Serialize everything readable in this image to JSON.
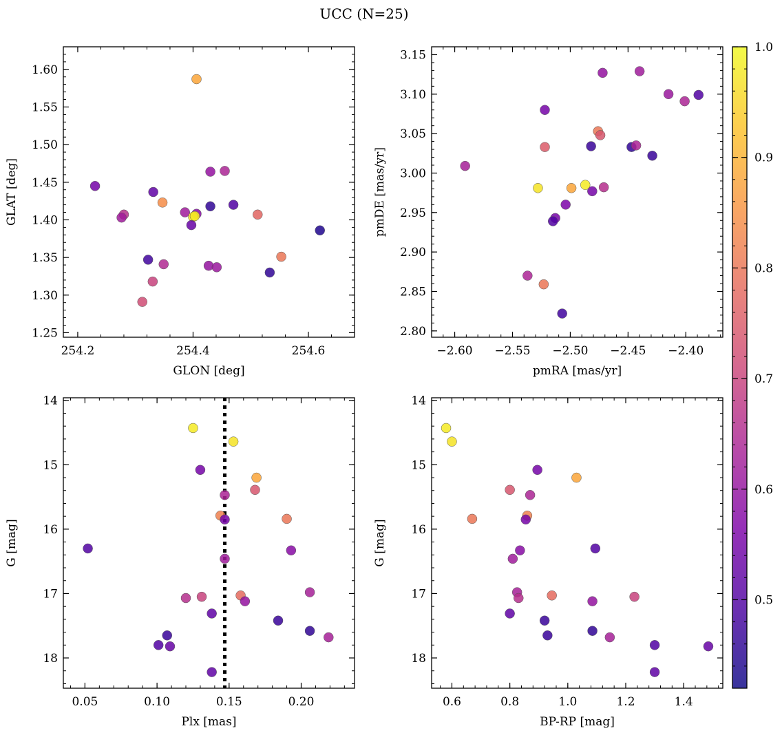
{
  "figure": {
    "title": "UCC (N=25)",
    "colormap": "plasma",
    "colorbar": {
      "range": [
        0.42,
        1.0
      ],
      "ticks": [
        0.5,
        0.6,
        0.7,
        0.8,
        0.9,
        1.0
      ],
      "tick_labels": [
        "0.5",
        "0.6",
        "0.7",
        "0.8",
        "0.9",
        "1.0"
      ]
    }
  },
  "chart_data": [
    {
      "type": "scatter",
      "id": "glon-glat",
      "xlabel": "GLON [deg]",
      "ylabel": "GLAT [deg]",
      "xlim": [
        254.175,
        254.68
      ],
      "ylim": [
        1.244,
        1.63
      ],
      "xticks": [
        254.2,
        254.4,
        254.6
      ],
      "xtick_labels": [
        "254.2",
        "254.4",
        "254.6"
      ],
      "yticks": [
        1.25,
        1.3,
        1.35,
        1.4,
        1.45,
        1.5,
        1.55,
        1.6
      ],
      "ytick_labels": [
        "1.25",
        "1.30",
        "1.35",
        "1.40",
        "1.45",
        "1.50",
        "1.55",
        "1.60"
      ],
      "grid": false,
      "points": [
        {
          "x": 254.406,
          "y": 1.587,
          "c": 0.88
        },
        {
          "x": 254.43,
          "y": 1.464,
          "c": 0.6
        },
        {
          "x": 254.455,
          "y": 1.465,
          "c": 0.64
        },
        {
          "x": 254.23,
          "y": 1.445,
          "c": 0.55
        },
        {
          "x": 254.331,
          "y": 1.437,
          "c": 0.52
        },
        {
          "x": 254.347,
          "y": 1.423,
          "c": 0.84
        },
        {
          "x": 254.47,
          "y": 1.42,
          "c": 0.5
        },
        {
          "x": 254.43,
          "y": 1.418,
          "c": 0.46
        },
        {
          "x": 254.386,
          "y": 1.41,
          "c": 0.62
        },
        {
          "x": 254.406,
          "y": 1.408,
          "c": 0.58
        },
        {
          "x": 254.4,
          "y": 1.404,
          "c": 0.97
        },
        {
          "x": 254.403,
          "y": 1.405,
          "c": 0.98
        },
        {
          "x": 254.28,
          "y": 1.407,
          "c": 0.66
        },
        {
          "x": 254.276,
          "y": 1.403,
          "c": 0.62
        },
        {
          "x": 254.512,
          "y": 1.407,
          "c": 0.77
        },
        {
          "x": 254.397,
          "y": 1.393,
          "c": 0.53
        },
        {
          "x": 254.62,
          "y": 1.386,
          "c": 0.44
        },
        {
          "x": 254.553,
          "y": 1.351,
          "c": 0.8
        },
        {
          "x": 254.322,
          "y": 1.347,
          "c": 0.48
        },
        {
          "x": 254.349,
          "y": 1.341,
          "c": 0.65
        },
        {
          "x": 254.427,
          "y": 1.339,
          "c": 0.6
        },
        {
          "x": 254.441,
          "y": 1.337,
          "c": 0.61
        },
        {
          "x": 254.533,
          "y": 1.33,
          "c": 0.46
        },
        {
          "x": 254.33,
          "y": 1.318,
          "c": 0.7
        },
        {
          "x": 254.312,
          "y": 1.291,
          "c": 0.72
        }
      ]
    },
    {
      "type": "scatter",
      "id": "pmra-pmde",
      "xlabel": "pmRA [mas/yr]",
      "ylabel": "pmDE [mas/yr]",
      "xlim": [
        -2.62,
        -2.368
      ],
      "ylim": [
        2.792,
        3.16
      ],
      "xticks": [
        -2.6,
        -2.55,
        -2.5,
        -2.45,
        -2.4
      ],
      "xtick_labels": [
        "−2.60",
        "−2.55",
        "−2.50",
        "−2.45",
        "−2.40"
      ],
      "yticks": [
        2.8,
        2.85,
        2.9,
        2.95,
        3.0,
        3.05,
        3.1,
        3.15
      ],
      "ytick_labels": [
        "2.80",
        "2.85",
        "2.90",
        "2.95",
        "3.00",
        "3.05",
        "3.10",
        "3.15"
      ],
      "grid": false,
      "points": [
        {
          "x": -2.44,
          "y": 3.129,
          "c": 0.62
        },
        {
          "x": -2.472,
          "y": 3.127,
          "c": 0.6
        },
        {
          "x": -2.415,
          "y": 3.1,
          "c": 0.61
        },
        {
          "x": -2.389,
          "y": 3.099,
          "c": 0.5
        },
        {
          "x": -2.401,
          "y": 3.091,
          "c": 0.64
        },
        {
          "x": -2.522,
          "y": 3.08,
          "c": 0.55
        },
        {
          "x": -2.476,
          "y": 3.053,
          "c": 0.8
        },
        {
          "x": -2.474,
          "y": 3.048,
          "c": 0.74
        },
        {
          "x": -2.482,
          "y": 3.034,
          "c": 0.47
        },
        {
          "x": -2.522,
          "y": 3.033,
          "c": 0.75
        },
        {
          "x": -2.447,
          "y": 3.033,
          "c": 0.46
        },
        {
          "x": -2.443,
          "y": 3.035,
          "c": 0.64
        },
        {
          "x": -2.429,
          "y": 3.022,
          "c": 0.47
        },
        {
          "x": -2.591,
          "y": 3.009,
          "c": 0.63
        },
        {
          "x": -2.487,
          "y": 2.985,
          "c": 0.98
        },
        {
          "x": -2.528,
          "y": 2.981,
          "c": 0.97
        },
        {
          "x": -2.499,
          "y": 2.981,
          "c": 0.88
        },
        {
          "x": -2.471,
          "y": 2.982,
          "c": 0.66
        },
        {
          "x": -2.481,
          "y": 2.977,
          "c": 0.55
        },
        {
          "x": -2.504,
          "y": 2.96,
          "c": 0.56
        },
        {
          "x": -2.513,
          "y": 2.943,
          "c": 0.55
        },
        {
          "x": -2.515,
          "y": 2.939,
          "c": 0.5
        },
        {
          "x": -2.537,
          "y": 2.87,
          "c": 0.64
        },
        {
          "x": -2.523,
          "y": 2.859,
          "c": 0.8
        },
        {
          "x": -2.507,
          "y": 2.822,
          "c": 0.48
        }
      ]
    },
    {
      "type": "scatter",
      "id": "plx-g",
      "xlabel": "Plx [mas]",
      "ylabel": "G [mag]",
      "xlim": [
        0.035,
        0.237
      ],
      "ylim": [
        18.47,
        13.96
      ],
      "y_inverted": true,
      "xticks": [
        0.05,
        0.1,
        0.15,
        0.2
      ],
      "xtick_labels": [
        "0.05",
        "0.10",
        "0.15",
        "0.20"
      ],
      "yticks": [
        14,
        15,
        16,
        17,
        18
      ],
      "ytick_labels": [
        "14",
        "15",
        "16",
        "17",
        "18"
      ],
      "grid": false,
      "vline": {
        "x": 0.147,
        "style": "dotted",
        "color": "#000000"
      },
      "points": [
        {
          "x": 0.125,
          "y": 14.43,
          "c": 0.98
        },
        {
          "x": 0.153,
          "y": 14.64,
          "c": 0.97
        },
        {
          "x": 0.13,
          "y": 15.08,
          "c": 0.55
        },
        {
          "x": 0.169,
          "y": 15.2,
          "c": 0.88
        },
        {
          "x": 0.168,
          "y": 15.39,
          "c": 0.74
        },
        {
          "x": 0.147,
          "y": 15.47,
          "c": 0.64
        },
        {
          "x": 0.144,
          "y": 15.79,
          "c": 0.82
        },
        {
          "x": 0.147,
          "y": 15.85,
          "c": 0.55
        },
        {
          "x": 0.19,
          "y": 15.84,
          "c": 0.8
        },
        {
          "x": 0.052,
          "y": 16.3,
          "c": 0.5
        },
        {
          "x": 0.193,
          "y": 16.33,
          "c": 0.58
        },
        {
          "x": 0.147,
          "y": 16.46,
          "c": 0.62
        },
        {
          "x": 0.206,
          "y": 16.98,
          "c": 0.63
        },
        {
          "x": 0.158,
          "y": 17.03,
          "c": 0.78
        },
        {
          "x": 0.131,
          "y": 17.05,
          "c": 0.7
        },
        {
          "x": 0.12,
          "y": 17.07,
          "c": 0.66
        },
        {
          "x": 0.161,
          "y": 17.12,
          "c": 0.6
        },
        {
          "x": 0.138,
          "y": 17.31,
          "c": 0.52
        },
        {
          "x": 0.184,
          "y": 17.42,
          "c": 0.47
        },
        {
          "x": 0.206,
          "y": 17.58,
          "c": 0.46
        },
        {
          "x": 0.107,
          "y": 17.65,
          "c": 0.47
        },
        {
          "x": 0.219,
          "y": 17.68,
          "c": 0.63
        },
        {
          "x": 0.101,
          "y": 17.8,
          "c": 0.5
        },
        {
          "x": 0.109,
          "y": 17.82,
          "c": 0.53
        },
        {
          "x": 0.138,
          "y": 18.22,
          "c": 0.52
        }
      ]
    },
    {
      "type": "scatter",
      "id": "bprp-g",
      "xlabel": "BP-RP [mag]",
      "ylabel": "G [mag]",
      "xlim": [
        0.53,
        1.535
      ],
      "ylim": [
        18.47,
        13.96
      ],
      "y_inverted": true,
      "xticks": [
        0.6,
        0.8,
        1.0,
        1.2,
        1.4
      ],
      "xtick_labels": [
        "0.6",
        "0.8",
        "1.0",
        "1.2",
        "1.4"
      ],
      "yticks": [
        14,
        15,
        16,
        17,
        18
      ],
      "ytick_labels": [
        "14",
        "15",
        "16",
        "17",
        "18"
      ],
      "grid": false,
      "points": [
        {
          "x": 0.58,
          "y": 14.43,
          "c": 0.98
        },
        {
          "x": 0.6,
          "y": 14.64,
          "c": 0.97
        },
        {
          "x": 0.895,
          "y": 15.08,
          "c": 0.55
        },
        {
          "x": 1.03,
          "y": 15.2,
          "c": 0.88
        },
        {
          "x": 0.8,
          "y": 15.39,
          "c": 0.74
        },
        {
          "x": 0.87,
          "y": 15.47,
          "c": 0.64
        },
        {
          "x": 0.86,
          "y": 15.79,
          "c": 0.82
        },
        {
          "x": 0.855,
          "y": 15.85,
          "c": 0.55
        },
        {
          "x": 0.67,
          "y": 15.84,
          "c": 0.8
        },
        {
          "x": 1.095,
          "y": 16.3,
          "c": 0.5
        },
        {
          "x": 0.835,
          "y": 16.33,
          "c": 0.58
        },
        {
          "x": 0.81,
          "y": 16.46,
          "c": 0.62
        },
        {
          "x": 0.825,
          "y": 16.98,
          "c": 0.63
        },
        {
          "x": 0.945,
          "y": 17.03,
          "c": 0.78
        },
        {
          "x": 1.23,
          "y": 17.05,
          "c": 0.7
        },
        {
          "x": 0.83,
          "y": 17.07,
          "c": 0.66
        },
        {
          "x": 1.085,
          "y": 17.12,
          "c": 0.6
        },
        {
          "x": 0.8,
          "y": 17.31,
          "c": 0.52
        },
        {
          "x": 0.92,
          "y": 17.42,
          "c": 0.47
        },
        {
          "x": 1.085,
          "y": 17.58,
          "c": 0.46
        },
        {
          "x": 0.93,
          "y": 17.65,
          "c": 0.47
        },
        {
          "x": 1.145,
          "y": 17.68,
          "c": 0.63
        },
        {
          "x": 1.3,
          "y": 17.8,
          "c": 0.5
        },
        {
          "x": 1.485,
          "y": 17.82,
          "c": 0.53
        },
        {
          "x": 1.3,
          "y": 18.22,
          "c": 0.52
        }
      ]
    }
  ]
}
